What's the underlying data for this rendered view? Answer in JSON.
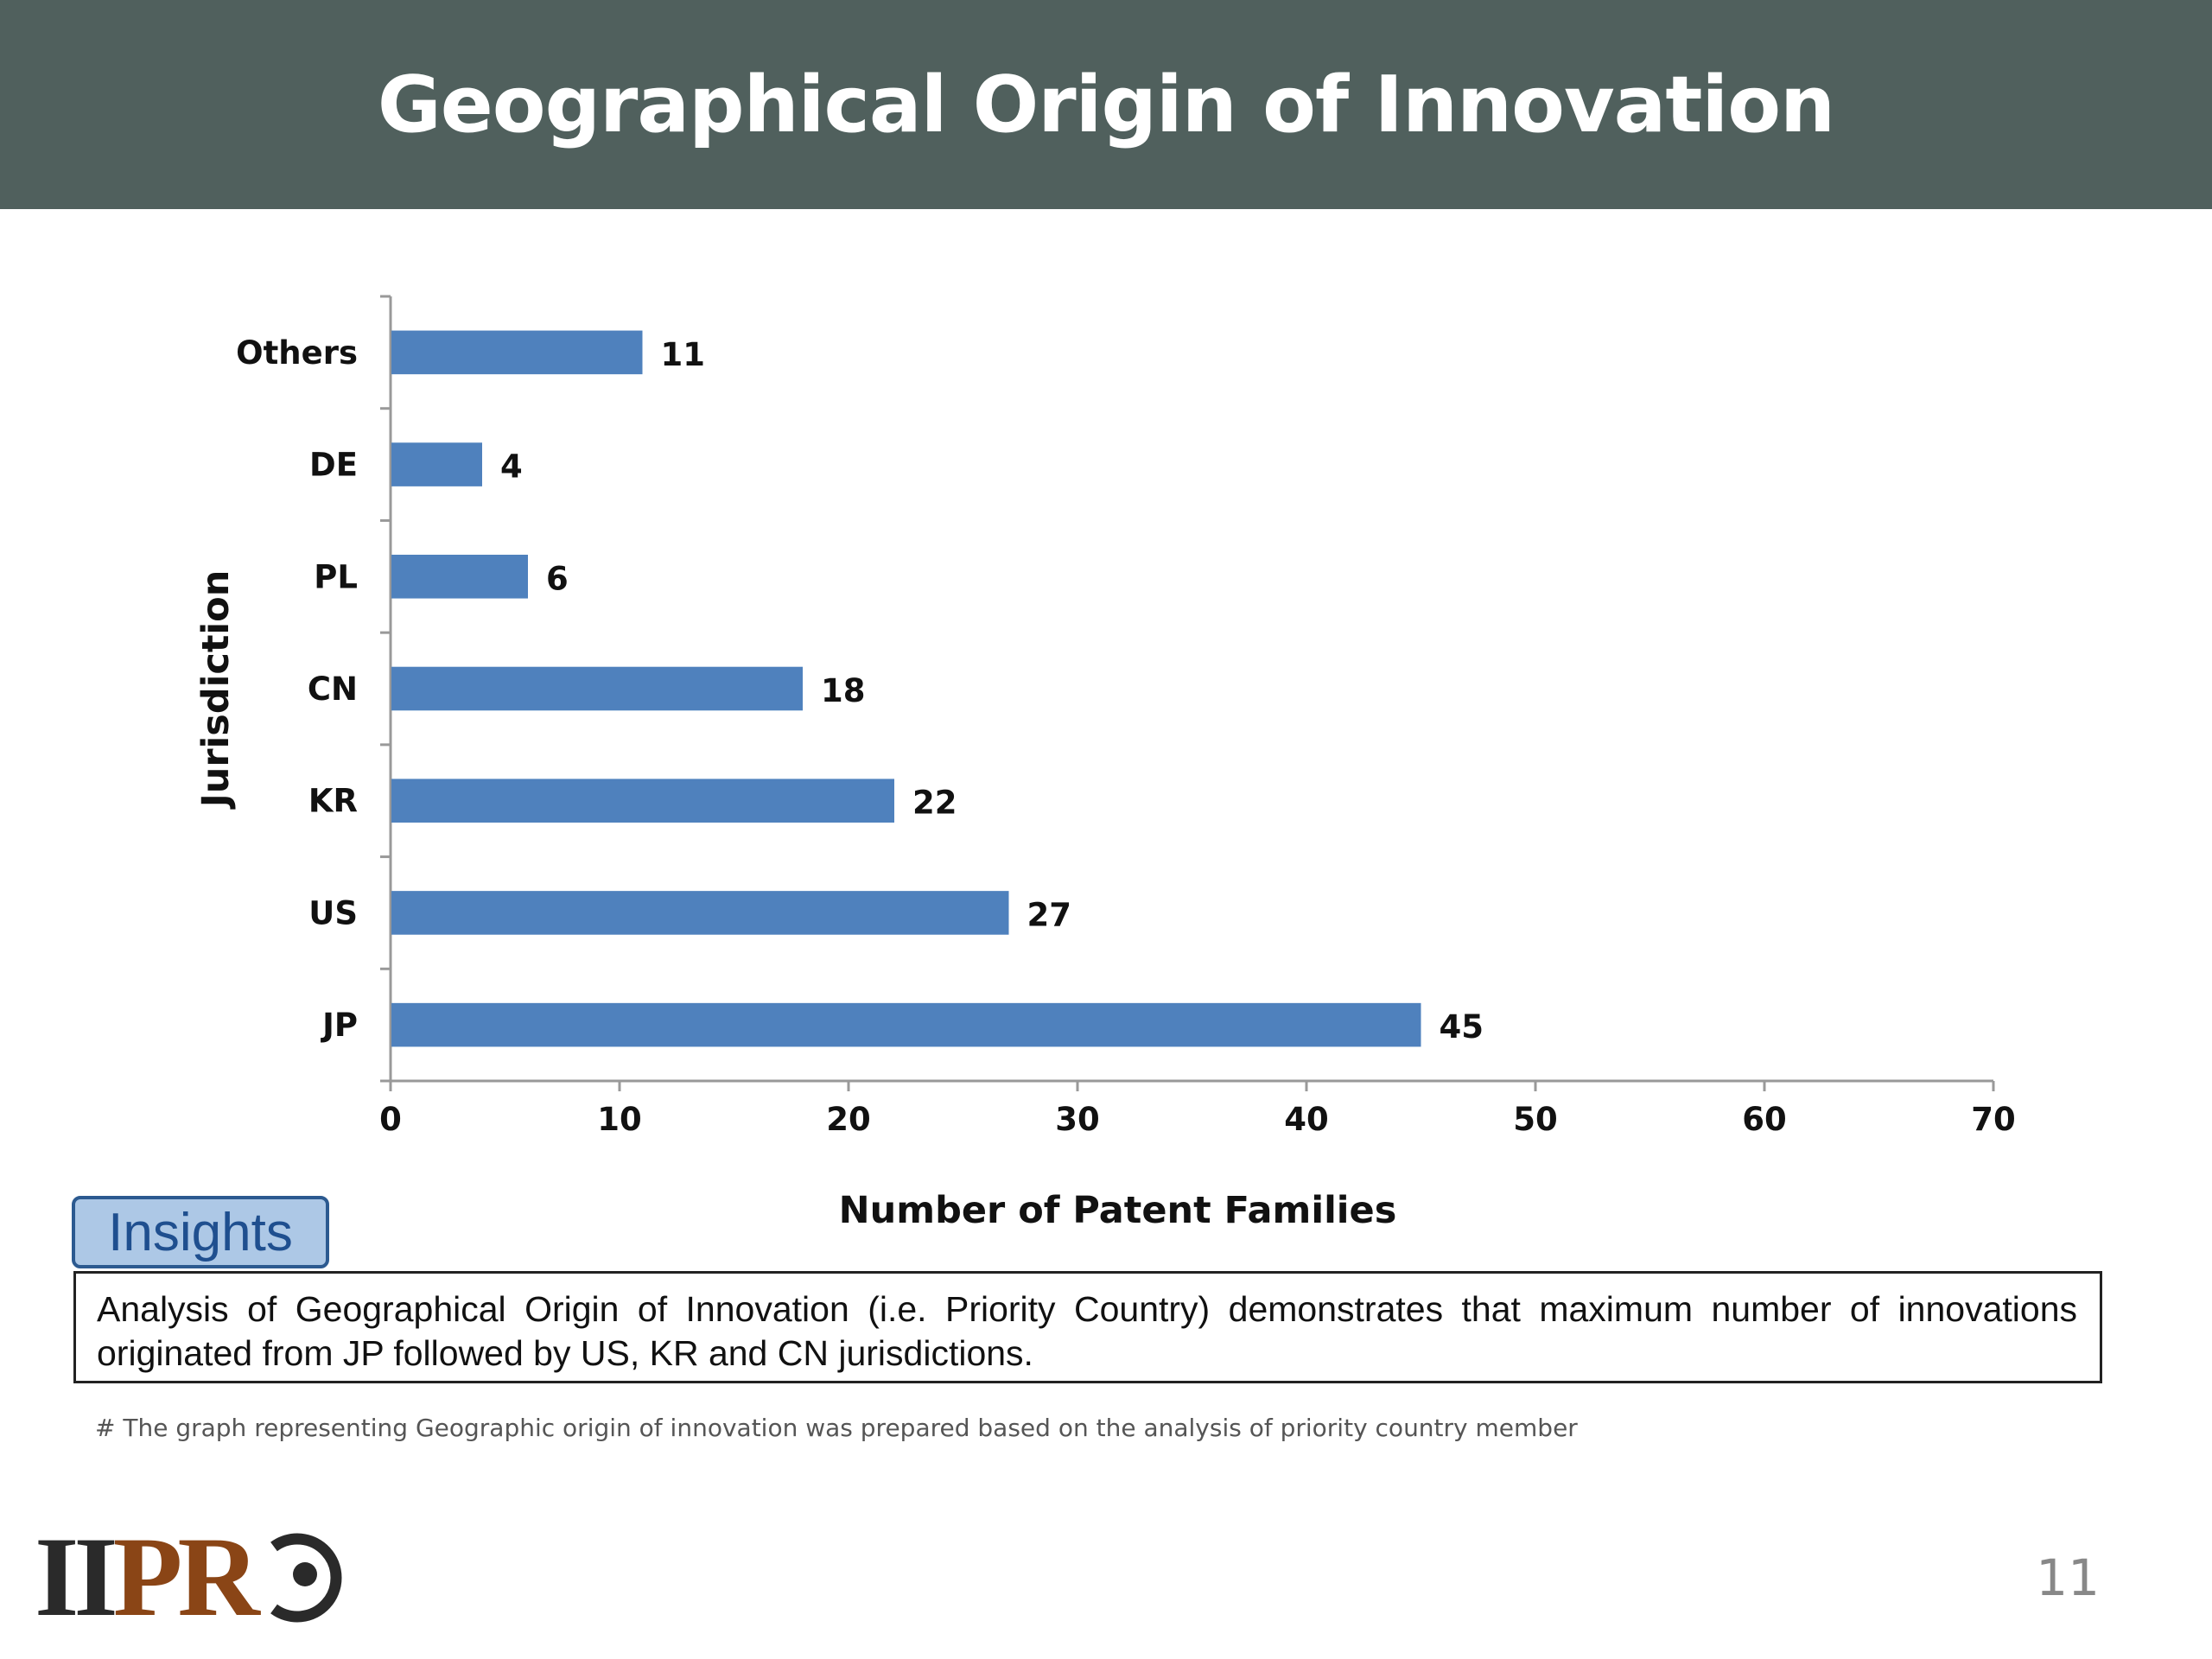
{
  "slide": {
    "title": "Geographical Origin of Innovation",
    "page_number": "11"
  },
  "chart_data": {
    "type": "bar",
    "orientation": "horizontal",
    "categories": [
      "Others",
      "DE",
      "PL",
      "CN",
      "KR",
      "US",
      "JP"
    ],
    "values": [
      11,
      4,
      6,
      18,
      22,
      27,
      45
    ],
    "xlabel": "Number of Patent Families",
    "ylabel": "Jurisdiction",
    "xlim": [
      0,
      70
    ],
    "xticks": [
      0,
      10,
      20,
      30,
      40,
      50,
      60,
      70
    ],
    "bar_color": "#4f81bd",
    "grid": false,
    "legend": "none"
  },
  "insights": {
    "label": "Insights",
    "text": "Analysis of Geographical Origin of Innovation (i.e. Priority Country) demonstrates that maximum number of innovations originated from JP followed by US, KR and CN jurisdictions."
  },
  "footnote": "# The graph representing Geographic origin of innovation was prepared based on the analysis of priority country  member",
  "logo": {
    "text_dark": "II",
    "text_brown": "PR",
    "colors": {
      "dark": "#2a2a2a",
      "brown": "#8a4516"
    }
  },
  "colors": {
    "header_bg": "#50605d",
    "insights_tab_bg": "#adc8e6",
    "insights_tab_border": "#2c5a90"
  }
}
